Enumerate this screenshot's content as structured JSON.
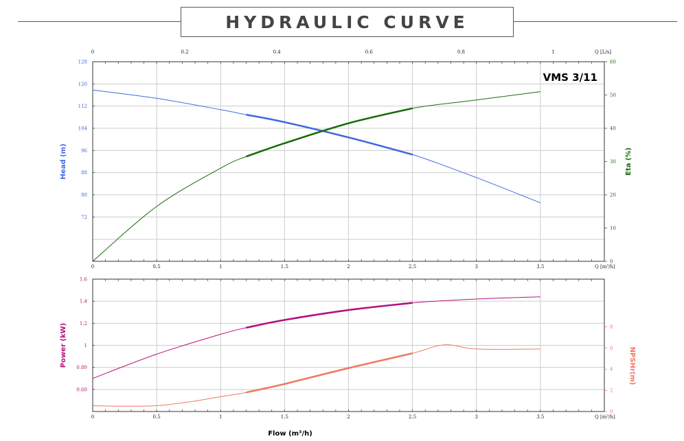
{
  "header": {
    "title": "HYDRAULIC CURVE"
  },
  "colors": {
    "head": "#4169e1",
    "eta": "#1b6b0c",
    "power": "#b4117f",
    "npsh": "#f07860",
    "grid": "#cccccc",
    "frame": "#333333"
  },
  "chart_data": [
    {
      "type": "line",
      "model_label": "VMS 3/11",
      "x_label": "Q [m³/h]",
      "x_ticks": [
        "0",
        "0.5",
        "1",
        "1.5",
        "2",
        "2.5",
        "3",
        "3.5"
      ],
      "xlim": [
        0,
        4
      ],
      "top_axis": {
        "label": "Q [L/s]",
        "ticks": [
          "0",
          "0.2",
          "0.4",
          "0.6",
          "0.8",
          "1"
        ]
      },
      "left_axis": {
        "title": "Head (m)",
        "ylim": [
          56,
          128
        ],
        "ticks": [
          "128",
          "120",
          "112",
          "104",
          "96",
          "88",
          "80",
          "72"
        ],
        "tick_values": [
          128,
          120,
          112,
          104,
          96,
          88,
          80,
          72
        ]
      },
      "right_axis": {
        "title": "Eta (%)",
        "ylim": [
          0,
          60
        ],
        "ticks": [
          "60",
          "50",
          "40",
          "30",
          "20",
          "10",
          "0"
        ],
        "tick_values": [
          60,
          50,
          40,
          30,
          20,
          10,
          0
        ]
      },
      "series": [
        {
          "name": "Head (m)",
          "axis": "left",
          "x": [
            0,
            0.5,
            1,
            1.2,
            1.5,
            2,
            2.5,
            3,
            3.5
          ],
          "y": [
            117.8,
            114.8,
            110.7,
            108.9,
            106.2,
            100.7,
            94.5,
            86.2,
            77.1
          ],
          "bold_range": [
            1.2,
            2.5
          ]
        },
        {
          "name": "Eta (%)",
          "axis": "right",
          "x": [
            0,
            0.5,
            1,
            1.2,
            1.5,
            2,
            2.5,
            3,
            3.5
          ],
          "y": [
            0,
            16.5,
            28,
            31.5,
            35.5,
            41.5,
            46,
            48.5,
            51
          ],
          "bold_range": [
            1.2,
            2.5
          ]
        }
      ]
    },
    {
      "type": "line",
      "x_label": "Q [m³/h]",
      "x_ticks": [
        "0",
        "0.5",
        "1",
        "1.5",
        "2",
        "2.5",
        "3",
        "3.5"
      ],
      "xlim": [
        0,
        4
      ],
      "xlabel": "Flow (m³/h)",
      "left_axis": {
        "title": "Power (kW)",
        "ylim": [
          0.4,
          1.6
        ],
        "ticks": [
          "1.6",
          "1.4",
          "1.2",
          "1",
          "0.80",
          "0.60"
        ],
        "tick_values": [
          1.6,
          1.4,
          1.2,
          1.0,
          0.8,
          0.6
        ]
      },
      "right_axis": {
        "title": "NPSHr(m)",
        "ylim": [
          0,
          12.5
        ],
        "ticks": [
          "8",
          "6",
          "4",
          "2",
          "0"
        ],
        "tick_values": [
          8,
          6,
          4,
          2,
          0
        ]
      },
      "series": [
        {
          "name": "Power (kW)",
          "axis": "left",
          "x": [
            0,
            0.5,
            1,
            1.2,
            1.5,
            2,
            2.5,
            3,
            3.5
          ],
          "y": [
            0.7,
            0.92,
            1.1,
            1.16,
            1.23,
            1.32,
            1.385,
            1.42,
            1.44
          ],
          "bold_range": [
            1.2,
            2.5
          ]
        },
        {
          "name": "NPSHr(m)",
          "axis": "right",
          "x": [
            0,
            0.25,
            0.5,
            0.75,
            1,
            1.2,
            1.5,
            2,
            2.5,
            2.75,
            3,
            3.5
          ],
          "y": [
            0.55,
            0.5,
            0.55,
            0.9,
            1.4,
            1.8,
            2.6,
            4.1,
            5.5,
            6.3,
            5.9,
            5.9
          ],
          "bold_range": [
            1.2,
            2.5
          ]
        }
      ]
    }
  ]
}
